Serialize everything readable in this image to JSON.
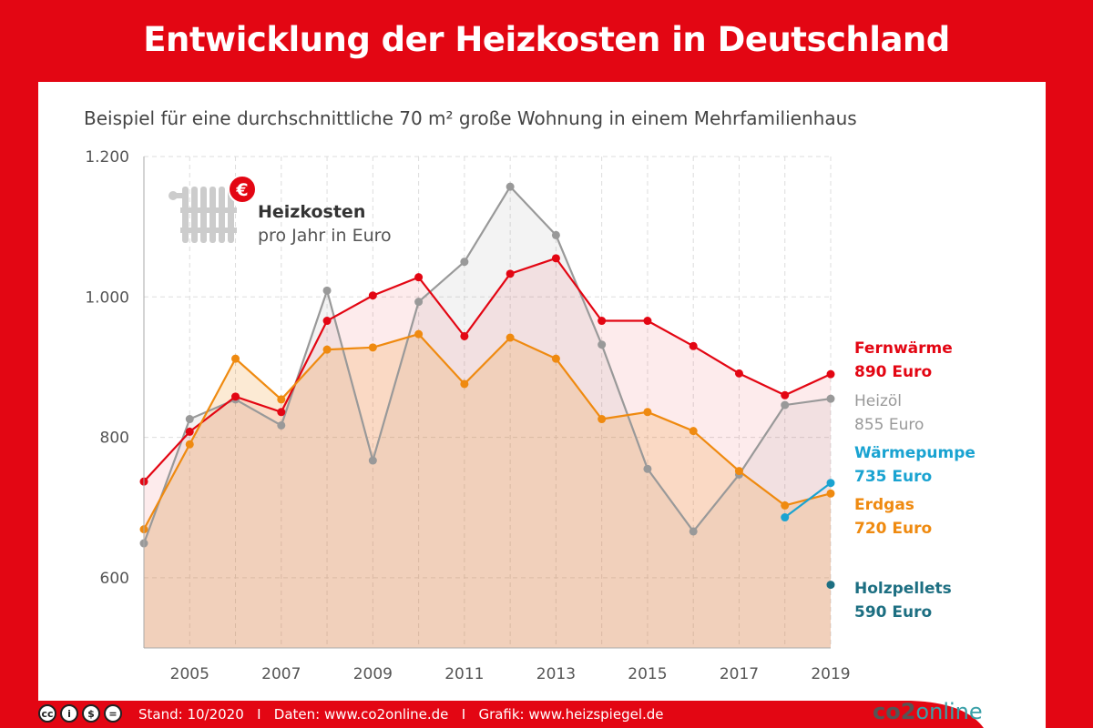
{
  "title": "Entwicklung der Heizkosten in Deutschland",
  "subtitle": "Beispiel für eine durchschnittliche 70 m² große Wohnung in einem Mehrfamilienhaus",
  "legend_box": {
    "title": "Heizkosten",
    "subtitle": "pro Jahr in Euro",
    "icon": "radiator-euro-icon"
  },
  "footer": {
    "text": "Stand: 10/2020   I   Daten: www.co2online.de   I   Grafik: www.heizspiegel.de",
    "logo": "co2online",
    "license_icons": [
      "cc",
      "by",
      "nc",
      "nd"
    ]
  },
  "colors": {
    "brand": "#e30613",
    "fernwaerme": "#e30613",
    "heizoel": "#999999",
    "waermepumpe": "#1aa3d1",
    "erdgas": "#ef8a10",
    "holzpellets": "#1d6f82"
  },
  "chart_data": {
    "type": "line",
    "x": [
      2004,
      2005,
      2006,
      2007,
      2008,
      2009,
      2010,
      2011,
      2012,
      2013,
      2014,
      2015,
      2016,
      2017,
      2018,
      2019
    ],
    "xticks": [
      "2005",
      "2007",
      "2009",
      "2011",
      "2013",
      "2015",
      "2017",
      "2019"
    ],
    "yticks": [
      "600",
      "800",
      "1.000",
      "1.200"
    ],
    "ylim": [
      500,
      1200
    ],
    "grid": true,
    "series": [
      {
        "name": "Heizöl",
        "label": "855 Euro",
        "color": "#999999",
        "values": [
          649,
          826,
          854,
          817,
          1009,
          767,
          993,
          1050,
          1157,
          1088,
          932,
          755,
          666,
          747,
          846,
          855
        ]
      },
      {
        "name": "Fernwärme",
        "label": "890 Euro",
        "color": "#e30613",
        "values": [
          737,
          808,
          858,
          836,
          966,
          1002,
          1028,
          944,
          1033,
          1055,
          966,
          966,
          930,
          891,
          860,
          890
        ]
      },
      {
        "name": "Erdgas",
        "label": "720 Euro",
        "color": "#ef8a10",
        "values": [
          669,
          790,
          912,
          854,
          925,
          928,
          947,
          876,
          942,
          912,
          826,
          836,
          809,
          752,
          703,
          720
        ]
      },
      {
        "name": "Wärmepumpe",
        "label": "735 Euro",
        "color": "#1aa3d1",
        "values": [
          null,
          null,
          null,
          null,
          null,
          null,
          null,
          null,
          null,
          null,
          null,
          null,
          null,
          null,
          686,
          735
        ]
      },
      {
        "name": "Holzpellets",
        "label": "590 Euro",
        "color": "#1d6f82",
        "values": [
          null,
          null,
          null,
          null,
          null,
          null,
          null,
          null,
          null,
          null,
          null,
          null,
          null,
          null,
          null,
          590
        ]
      }
    ]
  }
}
